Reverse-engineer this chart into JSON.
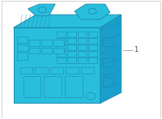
{
  "bg_color": "#ffffff",
  "border_color": "#cccccc",
  "cc": "#29bedd",
  "ce": "#1a8aaa",
  "cd": "#1a9fcc",
  "label_text": "1",
  "label_color": "#444444",
  "figsize": [
    2.0,
    1.47
  ],
  "dpi": 100
}
